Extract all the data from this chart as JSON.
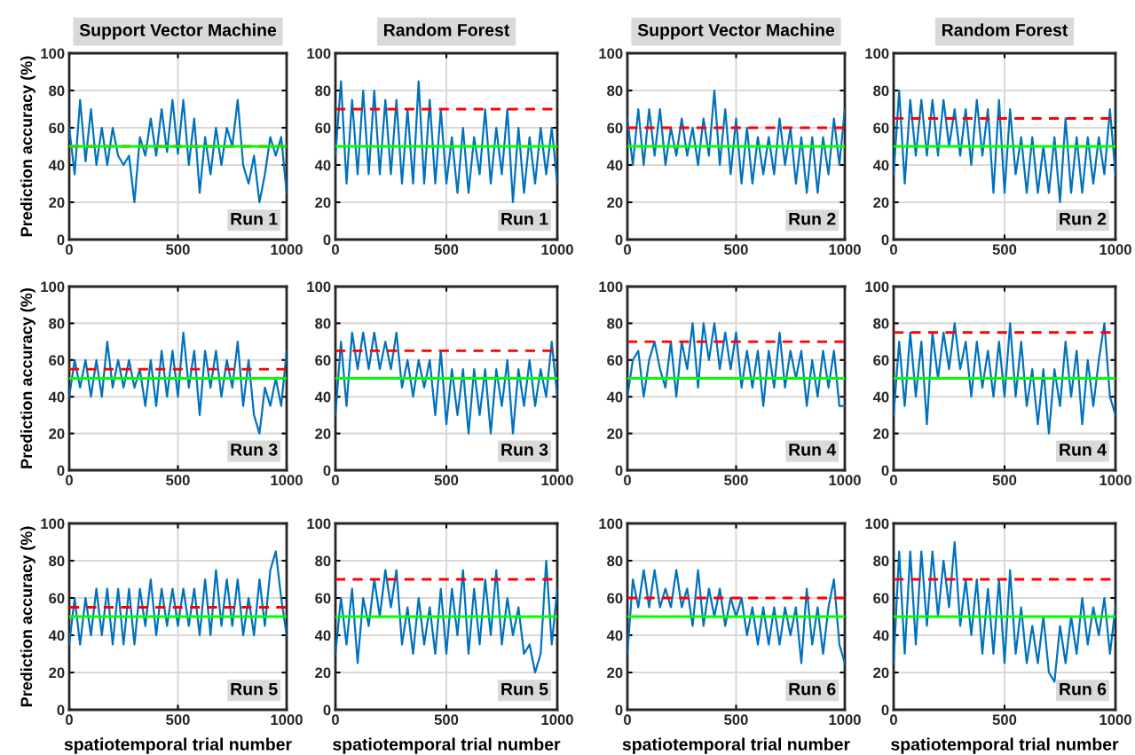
{
  "chart_data": [
    {
      "type": "line",
      "title": "Support Vector Machine",
      "ylabel": "Prediction accuracy (%)",
      "annotations": [
        "Run 1"
      ],
      "x": [
        0,
        25,
        50,
        75,
        100,
        125,
        150,
        175,
        200,
        225,
        250,
        275,
        300,
        325,
        350,
        375,
        400,
        425,
        450,
        475,
        500,
        525,
        550,
        575,
        600,
        625,
        650,
        675,
        700,
        725,
        750,
        775,
        800,
        825,
        850,
        875,
        900,
        925,
        950,
        975,
        1000
      ],
      "series": [
        {
          "color": "#0072bd",
          "values": [
            60,
            35,
            75,
            42,
            70,
            40,
            60,
            40,
            60,
            45,
            40,
            45,
            20,
            55,
            45,
            65,
            45,
            70,
            47,
            75,
            46,
            75,
            40,
            65,
            25,
            55,
            35,
            60,
            40,
            60,
            50,
            75,
            40,
            30,
            45,
            20,
            35,
            55,
            45,
            55,
            25
          ]
        }
      ],
      "xlim": [
        0,
        1000
      ],
      "xticks": [
        0,
        500,
        1000
      ],
      "ylim": [
        0,
        100
      ],
      "yticks": [
        0,
        20,
        40,
        60,
        80,
        100
      ],
      "grid": true,
      "ref_lines": [
        {
          "axis": "y",
          "value": 50,
          "color": "#ff0000",
          "line_style": "dashed"
        },
        {
          "axis": "y",
          "value": 50,
          "color": "#00ff00",
          "line_style": "solid"
        }
      ]
    },
    {
      "type": "line",
      "title": "Random Forest",
      "annotations": [
        "Run 1"
      ],
      "x": [
        0,
        25,
        50,
        75,
        100,
        125,
        150,
        175,
        200,
        225,
        250,
        275,
        300,
        325,
        350,
        375,
        400,
        425,
        450,
        475,
        500,
        525,
        550,
        575,
        600,
        625,
        650,
        675,
        700,
        725,
        750,
        775,
        800,
        825,
        850,
        875,
        900,
        925,
        950,
        975,
        1000
      ],
      "series": [
        {
          "color": "#0072bd",
          "values": [
            45,
            85,
            30,
            75,
            35,
            80,
            35,
            80,
            35,
            75,
            35,
            75,
            30,
            70,
            30,
            85,
            30,
            75,
            30,
            70,
            30,
            55,
            25,
            60,
            25,
            55,
            35,
            70,
            30,
            60,
            35,
            70,
            20,
            60,
            25,
            55,
            30,
            60,
            35,
            60,
            30
          ]
        }
      ],
      "xlim": [
        0,
        1000
      ],
      "xticks": [
        0,
        500,
        1000
      ],
      "ylim": [
        0,
        100
      ],
      "yticks": [
        0,
        20,
        40,
        60,
        80,
        100
      ],
      "grid": true,
      "ref_lines": [
        {
          "axis": "y",
          "value": 70,
          "color": "#ff0000",
          "line_style": "dashed"
        },
        {
          "axis": "y",
          "value": 50,
          "color": "#00ff00",
          "line_style": "solid"
        }
      ]
    },
    {
      "type": "line",
      "title": "Support Vector Machine",
      "annotations": [
        "Run 2"
      ],
      "x": [
        0,
        25,
        50,
        75,
        100,
        125,
        150,
        175,
        200,
        225,
        250,
        275,
        300,
        325,
        350,
        375,
        400,
        425,
        450,
        475,
        500,
        525,
        550,
        575,
        600,
        625,
        650,
        675,
        700,
        725,
        750,
        775,
        800,
        825,
        850,
        875,
        900,
        925,
        950,
        975,
        1000
      ],
      "series": [
        {
          "color": "#0072bd",
          "values": [
            65,
            40,
            70,
            40,
            70,
            45,
            70,
            40,
            60,
            45,
            65,
            45,
            60,
            40,
            65,
            45,
            80,
            40,
            70,
            35,
            65,
            30,
            60,
            30,
            55,
            35,
            55,
            35,
            65,
            40,
            60,
            30,
            55,
            25,
            55,
            25,
            55,
            35,
            65,
            40,
            70
          ]
        }
      ],
      "xlim": [
        0,
        1000
      ],
      "xticks": [
        0,
        500,
        1000
      ],
      "ylim": [
        0,
        100
      ],
      "yticks": [
        0,
        20,
        40,
        60,
        80,
        100
      ],
      "grid": true,
      "ref_lines": [
        {
          "axis": "y",
          "value": 60,
          "color": "#ff0000",
          "line_style": "dashed"
        },
        {
          "axis": "y",
          "value": 50,
          "color": "#00ff00",
          "line_style": "solid"
        }
      ]
    },
    {
      "type": "line",
      "title": "Random Forest",
      "annotations": [
        "Run 2"
      ],
      "x": [
        0,
        25,
        50,
        75,
        100,
        125,
        150,
        175,
        200,
        225,
        250,
        275,
        300,
        325,
        350,
        375,
        400,
        425,
        450,
        475,
        500,
        525,
        550,
        575,
        600,
        625,
        650,
        675,
        700,
        725,
        750,
        775,
        800,
        825,
        850,
        875,
        900,
        925,
        950,
        975,
        1000
      ],
      "series": [
        {
          "color": "#0072bd",
          "values": [
            35,
            80,
            30,
            75,
            45,
            75,
            45,
            75,
            45,
            75,
            50,
            70,
            45,
            70,
            40,
            75,
            45,
            70,
            25,
            75,
            25,
            70,
            35,
            55,
            25,
            55,
            25,
            50,
            25,
            55,
            20,
            65,
            25,
            55,
            25,
            55,
            30,
            55,
            35,
            70,
            35
          ]
        }
      ],
      "xlim": [
        0,
        1000
      ],
      "xticks": [
        0,
        500,
        1000
      ],
      "ylim": [
        0,
        100
      ],
      "yticks": [
        0,
        20,
        40,
        60,
        80,
        100
      ],
      "grid": true,
      "ref_lines": [
        {
          "axis": "y",
          "value": 65,
          "color": "#ff0000",
          "line_style": "dashed"
        },
        {
          "axis": "y",
          "value": 50,
          "color": "#00ff00",
          "line_style": "solid"
        }
      ]
    },
    {
      "type": "line",
      "ylabel": "Prediction accuracy (%)",
      "annotations": [
        "Run 3"
      ],
      "x": [
        0,
        25,
        50,
        75,
        100,
        125,
        150,
        175,
        200,
        225,
        250,
        275,
        300,
        325,
        350,
        375,
        400,
        425,
        450,
        475,
        500,
        525,
        550,
        575,
        600,
        625,
        650,
        675,
        700,
        725,
        750,
        775,
        800,
        825,
        850,
        875,
        900,
        925,
        950,
        975,
        1000
      ],
      "series": [
        {
          "color": "#0072bd",
          "values": [
            40,
            60,
            45,
            60,
            40,
            60,
            40,
            70,
            45,
            60,
            45,
            60,
            45,
            55,
            35,
            60,
            35,
            65,
            40,
            65,
            40,
            75,
            45,
            65,
            30,
            65,
            45,
            65,
            40,
            60,
            45,
            70,
            35,
            60,
            30,
            20,
            45,
            35,
            50,
            35,
            65
          ]
        }
      ],
      "xlim": [
        0,
        1000
      ],
      "xticks": [
        0,
        500,
        1000
      ],
      "ylim": [
        0,
        100
      ],
      "yticks": [
        0,
        20,
        40,
        60,
        80,
        100
      ],
      "grid": true,
      "ref_lines": [
        {
          "axis": "y",
          "value": 55,
          "color": "#ff0000",
          "line_style": "dashed"
        },
        {
          "axis": "y",
          "value": 50,
          "color": "#00ff00",
          "line_style": "solid"
        }
      ]
    },
    {
      "type": "line",
      "annotations": [
        "Run 3"
      ],
      "x": [
        0,
        25,
        50,
        75,
        100,
        125,
        150,
        175,
        200,
        225,
        250,
        275,
        300,
        325,
        350,
        375,
        400,
        425,
        450,
        475,
        500,
        525,
        550,
        575,
        600,
        625,
        650,
        675,
        700,
        725,
        750,
        775,
        800,
        825,
        850,
        875,
        900,
        925,
        950,
        975,
        1000
      ],
      "series": [
        {
          "color": "#0072bd",
          "values": [
            30,
            70,
            35,
            75,
            55,
            75,
            55,
            75,
            55,
            70,
            55,
            75,
            45,
            60,
            40,
            60,
            45,
            60,
            30,
            65,
            25,
            55,
            30,
            55,
            20,
            55,
            30,
            55,
            20,
            55,
            35,
            60,
            20,
            55,
            35,
            60,
            35,
            55,
            40,
            70,
            40
          ]
        }
      ],
      "xlim": [
        0,
        1000
      ],
      "xticks": [
        0,
        500,
        1000
      ],
      "ylim": [
        0,
        100
      ],
      "yticks": [
        0,
        20,
        40,
        60,
        80,
        100
      ],
      "grid": true,
      "ref_lines": [
        {
          "axis": "y",
          "value": 65,
          "color": "#ff0000",
          "line_style": "dashed"
        },
        {
          "axis": "y",
          "value": 50,
          "color": "#00ff00",
          "line_style": "solid"
        }
      ]
    },
    {
      "type": "line",
      "annotations": [
        "Run 4"
      ],
      "x": [
        0,
        25,
        50,
        75,
        100,
        125,
        150,
        175,
        200,
        225,
        250,
        275,
        300,
        325,
        350,
        375,
        400,
        425,
        450,
        475,
        500,
        525,
        550,
        575,
        600,
        625,
        650,
        675,
        700,
        725,
        750,
        775,
        800,
        825,
        850,
        875,
        900,
        925,
        950,
        975,
        1000
      ],
      "series": [
        {
          "color": "#0072bd",
          "values": [
            40,
            60,
            65,
            40,
            60,
            70,
            55,
            45,
            70,
            40,
            70,
            55,
            80,
            45,
            80,
            60,
            80,
            55,
            75,
            55,
            75,
            45,
            65,
            45,
            65,
            35,
            65,
            45,
            75,
            45,
            65,
            50,
            65,
            35,
            60,
            40,
            65,
            45,
            65,
            35,
            35
          ]
        }
      ],
      "xlim": [
        0,
        1000
      ],
      "xticks": [
        0,
        500,
        1000
      ],
      "ylim": [
        0,
        100
      ],
      "yticks": [
        0,
        20,
        40,
        60,
        80,
        100
      ],
      "grid": true,
      "ref_lines": [
        {
          "axis": "y",
          "value": 70,
          "color": "#ff0000",
          "line_style": "dashed"
        },
        {
          "axis": "y",
          "value": 50,
          "color": "#00ff00",
          "line_style": "solid"
        }
      ]
    },
    {
      "type": "line",
      "annotations": [
        "Run 4"
      ],
      "x": [
        0,
        25,
        50,
        75,
        100,
        125,
        150,
        175,
        200,
        225,
        250,
        275,
        300,
        325,
        350,
        375,
        400,
        425,
        450,
        475,
        500,
        525,
        550,
        575,
        600,
        625,
        650,
        675,
        700,
        725,
        750,
        775,
        800,
        825,
        850,
        875,
        900,
        925,
        950,
        975,
        1000
      ],
      "series": [
        {
          "color": "#0072bd",
          "values": [
            30,
            70,
            35,
            75,
            40,
            70,
            25,
            75,
            50,
            75,
            55,
            80,
            55,
            70,
            40,
            70,
            45,
            65,
            40,
            70,
            40,
            80,
            40,
            70,
            35,
            55,
            25,
            55,
            20,
            55,
            35,
            70,
            40,
            65,
            25,
            60,
            35,
            60,
            80,
            40,
            30
          ]
        }
      ],
      "xlim": [
        0,
        1000
      ],
      "xticks": [
        0,
        500,
        1000
      ],
      "ylim": [
        0,
        100
      ],
      "yticks": [
        0,
        20,
        40,
        60,
        80,
        100
      ],
      "grid": true,
      "ref_lines": [
        {
          "axis": "y",
          "value": 75,
          "color": "#ff0000",
          "line_style": "dashed"
        },
        {
          "axis": "y",
          "value": 50,
          "color": "#00ff00",
          "line_style": "solid"
        }
      ]
    },
    {
      "type": "line",
      "ylabel": "Prediction accuracy (%)",
      "xlabel": "spatiotemporal trial number",
      "annotations": [
        "Run 5"
      ],
      "x": [
        0,
        25,
        50,
        75,
        100,
        125,
        150,
        175,
        200,
        225,
        250,
        275,
        300,
        325,
        350,
        375,
        400,
        425,
        450,
        475,
        500,
        525,
        550,
        575,
        600,
        625,
        650,
        675,
        700,
        725,
        750,
        775,
        800,
        825,
        850,
        875,
        900,
        925,
        950,
        975,
        1000
      ],
      "series": [
        {
          "color": "#0072bd",
          "values": [
            35,
            60,
            35,
            60,
            40,
            65,
            40,
            65,
            35,
            65,
            35,
            65,
            35,
            65,
            45,
            70,
            40,
            65,
            45,
            65,
            45,
            65,
            45,
            65,
            40,
            70,
            40,
            75,
            45,
            70,
            45,
            70,
            40,
            60,
            40,
            70,
            45,
            75,
            85,
            60,
            40
          ]
        }
      ],
      "xlim": [
        0,
        1000
      ],
      "xticks": [
        0,
        500,
        1000
      ],
      "ylim": [
        0,
        100
      ],
      "yticks": [
        0,
        20,
        40,
        60,
        80,
        100
      ],
      "grid": true,
      "ref_lines": [
        {
          "axis": "y",
          "value": 55,
          "color": "#ff0000",
          "line_style": "dashed"
        },
        {
          "axis": "y",
          "value": 50,
          "color": "#00ff00",
          "line_style": "solid"
        }
      ]
    },
    {
      "type": "line",
      "xlabel": "spatiotemporal trial number",
      "annotations": [
        "Run 5"
      ],
      "x": [
        0,
        25,
        50,
        75,
        100,
        125,
        150,
        175,
        200,
        225,
        250,
        275,
        300,
        325,
        350,
        375,
        400,
        425,
        450,
        475,
        500,
        525,
        550,
        575,
        600,
        625,
        650,
        675,
        700,
        725,
        750,
        775,
        800,
        825,
        850,
        875,
        900,
        925,
        950,
        975,
        1000
      ],
      "series": [
        {
          "color": "#0072bd",
          "values": [
            30,
            60,
            35,
            65,
            25,
            60,
            45,
            70,
            50,
            75,
            55,
            75,
            35,
            55,
            30,
            60,
            35,
            55,
            30,
            65,
            30,
            65,
            40,
            75,
            30,
            65,
            35,
            70,
            40,
            75,
            35,
            60,
            40,
            55,
            30,
            35,
            20,
            30,
            80,
            35,
            65
          ]
        }
      ],
      "xlim": [
        0,
        1000
      ],
      "xticks": [
        0,
        500,
        1000
      ],
      "ylim": [
        0,
        100
      ],
      "yticks": [
        0,
        20,
        40,
        60,
        80,
        100
      ],
      "grid": true,
      "ref_lines": [
        {
          "axis": "y",
          "value": 70,
          "color": "#ff0000",
          "line_style": "dashed"
        },
        {
          "axis": "y",
          "value": 50,
          "color": "#00ff00",
          "line_style": "solid"
        }
      ]
    },
    {
      "type": "line",
      "xlabel": "spatiotemporal trial number",
      "annotations": [
        "Run 6"
      ],
      "x": [
        0,
        25,
        50,
        75,
        100,
        125,
        150,
        175,
        200,
        225,
        250,
        275,
        300,
        325,
        350,
        375,
        400,
        425,
        450,
        475,
        500,
        525,
        550,
        575,
        600,
        625,
        650,
        675,
        700,
        725,
        750,
        775,
        800,
        825,
        850,
        875,
        900,
        925,
        950,
        975,
        1000
      ],
      "series": [
        {
          "color": "#0072bd",
          "values": [
            30,
            70,
            55,
            75,
            55,
            75,
            55,
            65,
            55,
            75,
            55,
            65,
            45,
            75,
            45,
            65,
            50,
            65,
            45,
            60,
            50,
            60,
            40,
            55,
            35,
            55,
            35,
            55,
            35,
            55,
            40,
            55,
            25,
            65,
            35,
            55,
            30,
            55,
            70,
            35,
            25
          ]
        }
      ],
      "xlim": [
        0,
        1000
      ],
      "xticks": [
        0,
        500,
        1000
      ],
      "ylim": [
        0,
        100
      ],
      "yticks": [
        0,
        20,
        40,
        60,
        80,
        100
      ],
      "grid": true,
      "ref_lines": [
        {
          "axis": "y",
          "value": 60,
          "color": "#ff0000",
          "line_style": "dashed"
        },
        {
          "axis": "y",
          "value": 50,
          "color": "#00ff00",
          "line_style": "solid"
        }
      ]
    },
    {
      "type": "line",
      "xlabel": "spatiotemporal trial number",
      "annotations": [
        "Run 6"
      ],
      "x": [
        0,
        25,
        50,
        75,
        100,
        125,
        150,
        175,
        200,
        225,
        250,
        275,
        300,
        325,
        350,
        375,
        400,
        425,
        450,
        475,
        500,
        525,
        550,
        575,
        600,
        625,
        650,
        675,
        700,
        725,
        750,
        775,
        800,
        825,
        850,
        875,
        900,
        925,
        950,
        975,
        1000
      ],
      "series": [
        {
          "color": "#0072bd",
          "values": [
            25,
            85,
            30,
            85,
            35,
            85,
            45,
            85,
            50,
            80,
            55,
            90,
            45,
            70,
            40,
            70,
            30,
            65,
            30,
            70,
            25,
            75,
            30,
            55,
            25,
            45,
            25,
            50,
            20,
            15,
            45,
            25,
            50,
            30,
            60,
            35,
            55,
            40,
            60,
            30,
            55
          ]
        }
      ],
      "xlim": [
        0,
        1000
      ],
      "xticks": [
        0,
        500,
        1000
      ],
      "ylim": [
        0,
        100
      ],
      "yticks": [
        0,
        20,
        40,
        60,
        80,
        100
      ],
      "grid": true,
      "ref_lines": [
        {
          "axis": "y",
          "value": 70,
          "color": "#ff0000",
          "line_style": "dashed"
        },
        {
          "axis": "y",
          "value": 50,
          "color": "#00ff00",
          "line_style": "solid"
        }
      ]
    }
  ]
}
